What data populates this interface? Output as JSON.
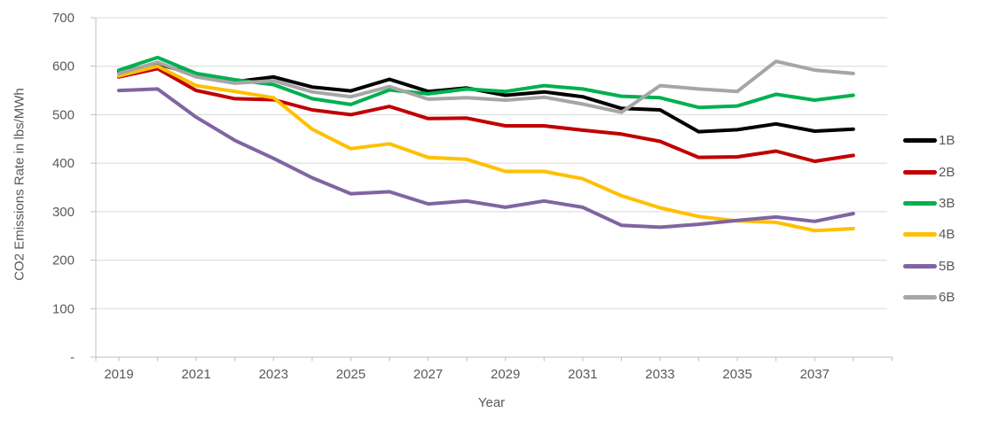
{
  "chart_data": {
    "type": "line",
    "title": "",
    "xlabel": "Year",
    "ylabel": "CO2 Emissions Rate in lbs/MWh",
    "ylim": [
      0,
      700
    ],
    "grid": "horizontal",
    "legend_position": "right",
    "x": [
      2019,
      2020,
      2021,
      2022,
      2023,
      2024,
      2025,
      2026,
      2027,
      2028,
      2029,
      2030,
      2031,
      2032,
      2033,
      2034,
      2035,
      2036,
      2037,
      2038
    ],
    "x_tick_labels": [
      "2019",
      "2021",
      "2023",
      "2025",
      "2027",
      "2029",
      "2031",
      "2033",
      "2035",
      "2037"
    ],
    "y_ticks": [
      {
        "value": 700,
        "label": "700"
      },
      {
        "value": 600,
        "label": "600"
      },
      {
        "value": 500,
        "label": "500"
      },
      {
        "value": 400,
        "label": "400"
      },
      {
        "value": 300,
        "label": "300"
      },
      {
        "value": 200,
        "label": "200"
      },
      {
        "value": 100,
        "label": "100"
      },
      {
        "value": 0,
        "label": "-"
      }
    ],
    "series": [
      {
        "name": "1B",
        "color": "#000000",
        "values": [
          588,
          605,
          582,
          568,
          578,
          557,
          549,
          573,
          548,
          555,
          540,
          547,
          537,
          513,
          510,
          465,
          469,
          481,
          466,
          470
        ]
      },
      {
        "name": "2B",
        "color": "#C00000",
        "values": [
          578,
          595,
          550,
          533,
          531,
          510,
          500,
          517,
          492,
          493,
          477,
          477,
          468,
          460,
          445,
          412,
          413,
          425,
          404,
          416
        ]
      },
      {
        "name": "3B",
        "color": "#00B050",
        "values": [
          592,
          618,
          585,
          572,
          562,
          533,
          521,
          551,
          543,
          553,
          548,
          560,
          553,
          538,
          535,
          515,
          518,
          542,
          530,
          540
        ]
      },
      {
        "name": "4B",
        "color": "#FFC000",
        "values": [
          580,
          600,
          560,
          548,
          535,
          470,
          430,
          440,
          412,
          408,
          383,
          383,
          368,
          333,
          308,
          290,
          281,
          278,
          261,
          265
        ]
      },
      {
        "name": "5B",
        "color": "#8064A2",
        "values": [
          550,
          553,
          495,
          447,
          410,
          370,
          337,
          341,
          316,
          322,
          309,
          322,
          309,
          272,
          268,
          274,
          282,
          289,
          280,
          296
        ]
      },
      {
        "name": "6B",
        "color": "#A6A6A6",
        "values": [
          585,
          608,
          578,
          565,
          570,
          547,
          537,
          558,
          532,
          535,
          530,
          536,
          522,
          505,
          560,
          553,
          548,
          610,
          592,
          585
        ]
      }
    ],
    "colors": {
      "gridline": "#D9D9D9",
      "axis_line": "#BFBFBF",
      "tick_text": "#595959"
    }
  }
}
